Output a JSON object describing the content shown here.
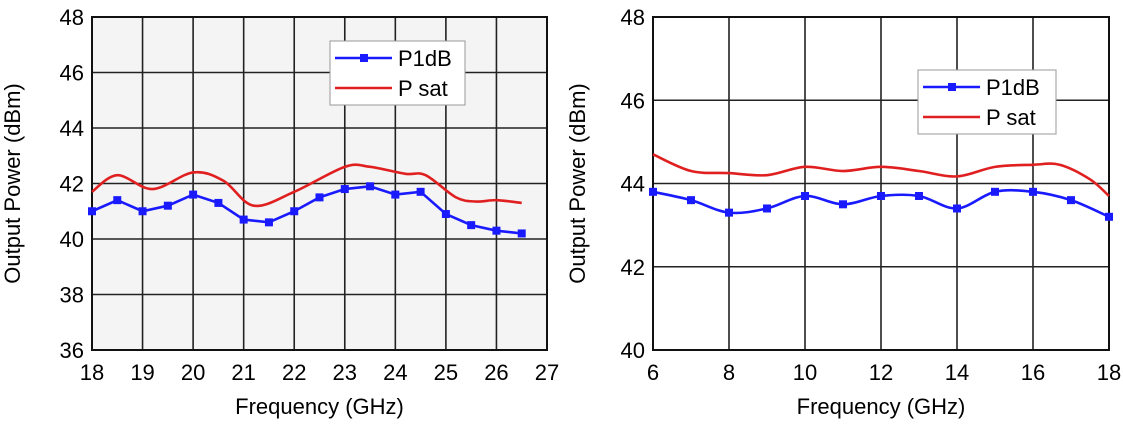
{
  "chart_data": [
    {
      "type": "line",
      "xlabel": "Frequency  (GHz)",
      "ylabel": "Output Power  (dBm)",
      "xlim": [
        18,
        27
      ],
      "ylim": [
        36,
        48
      ],
      "xticks": [
        "18",
        "19",
        "20",
        "21",
        "22",
        "23",
        "24",
        "25",
        "26",
        "27"
      ],
      "yticks": [
        "36",
        "38",
        "40",
        "42",
        "44",
        "46",
        "48"
      ],
      "grid": true,
      "legend": "top-right",
      "series": [
        {
          "name": "P1dB",
          "color": "#1a1aff",
          "marker": "square",
          "x": [
            18,
            18.5,
            19,
            19.5,
            20,
            20.5,
            21,
            21.5,
            22,
            22.5,
            23,
            23.5,
            24,
            24.5,
            25,
            25.5,
            26,
            26.5
          ],
          "y": [
            41.0,
            41.4,
            41.0,
            41.2,
            41.6,
            41.3,
            40.7,
            40.6,
            41.0,
            41.5,
            41.8,
            41.9,
            41.6,
            41.7,
            40.9,
            40.5,
            40.3,
            40.2
          ]
        },
        {
          "name": "P sat",
          "color": "#e02020",
          "marker": "none",
          "x": [
            18,
            18.5,
            19.2,
            20,
            20.6,
            21.2,
            22,
            23,
            23.5,
            24.2,
            24.6,
            25.2,
            25.6,
            26,
            26.5
          ],
          "y": [
            41.7,
            42.3,
            41.8,
            42.4,
            42.1,
            41.2,
            41.7,
            42.6,
            42.6,
            42.35,
            42.3,
            41.5,
            41.35,
            41.4,
            41.3
          ]
        }
      ]
    },
    {
      "type": "line",
      "xlabel": "Frequency  (GHz)",
      "ylabel": "Output Power  (dBm)",
      "xlim": [
        6,
        18
      ],
      "ylim": [
        40,
        48
      ],
      "xticks": [
        "6",
        "8",
        "10",
        "12",
        "14",
        "16",
        "18"
      ],
      "yticks": [
        "40",
        "42",
        "44",
        "46",
        "48"
      ],
      "grid": true,
      "legend": "top-right",
      "series": [
        {
          "name": "P1dB",
          "color": "#1a1aff",
          "marker": "square",
          "x": [
            6,
            7,
            8,
            9,
            10,
            11,
            12,
            13,
            14,
            15,
            16,
            17,
            18
          ],
          "y": [
            43.8,
            43.6,
            43.3,
            43.4,
            43.7,
            43.5,
            43.7,
            43.7,
            43.4,
            43.8,
            43.8,
            43.6,
            43.2
          ]
        },
        {
          "name": "P sat",
          "color": "#e02020",
          "marker": "none",
          "x": [
            6,
            7,
            8,
            9,
            10,
            11,
            12,
            13,
            14,
            15,
            16,
            16.7,
            17.5,
            18
          ],
          "y": [
            44.7,
            44.3,
            44.25,
            44.2,
            44.4,
            44.3,
            44.4,
            44.3,
            44.17,
            44.4,
            44.45,
            44.45,
            44.1,
            43.7
          ]
        }
      ]
    }
  ]
}
